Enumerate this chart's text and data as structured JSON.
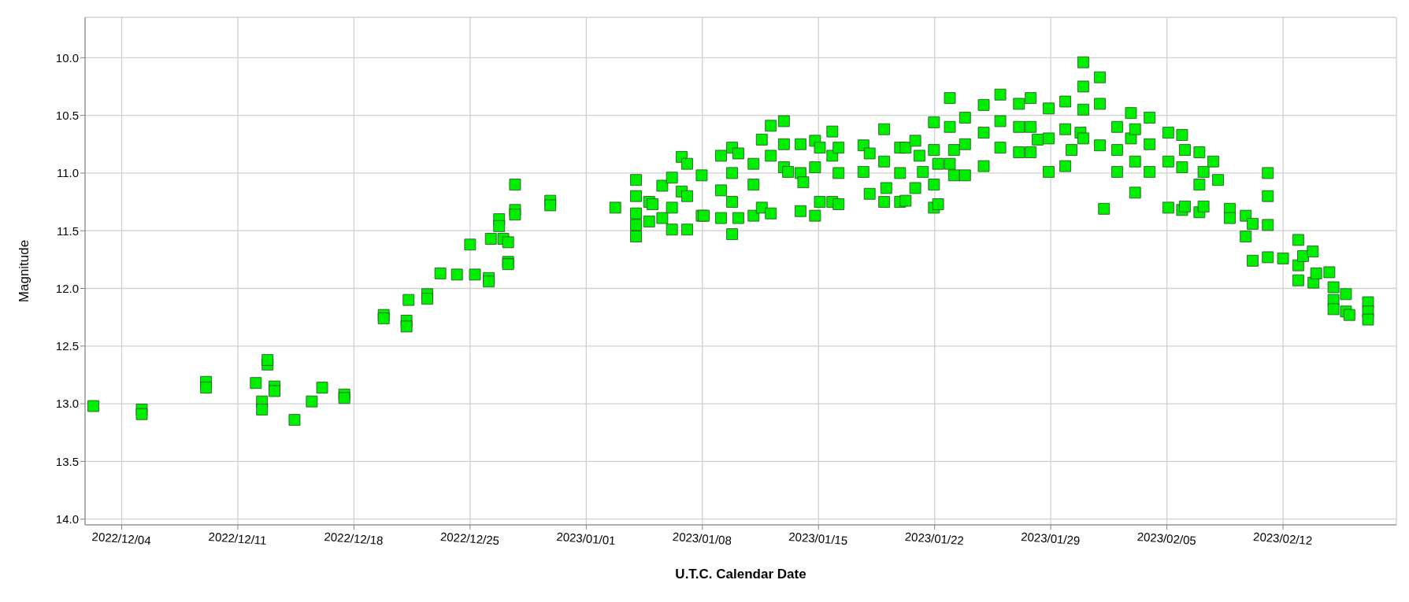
{
  "chart_data": {
    "type": "scatter",
    "xlabel": "U.T.C. Calendar Date",
    "ylabel": "Magnitude",
    "marker": "square",
    "grid": true,
    "xlim": [
      "2022-12-01T19:00",
      "2023-02-18T20:00"
    ],
    "xticks": [
      {
        "value": "2022-12-04",
        "label": "2022/12/04"
      },
      {
        "value": "2022-12-11",
        "label": "2022/12/11"
      },
      {
        "value": "2022-12-18",
        "label": "2022/12/18"
      },
      {
        "value": "2022-12-25",
        "label": "2022/12/25"
      },
      {
        "value": "2023-01-01",
        "label": "2023/01/01"
      },
      {
        "value": "2023-01-08",
        "label": "2023/01/08"
      },
      {
        "value": "2023-01-15",
        "label": "2023/01/15"
      },
      {
        "value": "2023-01-22",
        "label": "2023/01/22"
      },
      {
        "value": "2023-01-29",
        "label": "2023/01/29"
      },
      {
        "value": "2023-02-05",
        "label": "2023/02/05"
      },
      {
        "value": "2023-02-12",
        "label": "2023/02/12"
      }
    ],
    "ylim": [
      14.05,
      9.65
    ],
    "yticks": [
      {
        "value": 10,
        "label": "10.0"
      },
      {
        "value": 10.5,
        "label": "10.5"
      },
      {
        "value": 11,
        "label": "11.0"
      },
      {
        "value": 11.5,
        "label": "11.5"
      },
      {
        "value": 12,
        "label": "12.0"
      },
      {
        "value": 12.5,
        "label": "12.5"
      },
      {
        "value": 13,
        "label": "13.0"
      },
      {
        "value": 13.5,
        "label": "13.5"
      },
      {
        "value": 14,
        "label": "14.0"
      }
    ],
    "series": [
      {
        "color": "#00ee00",
        "x": [
          "2022-12-02T07:00",
          "2022-12-05T05:00",
          "2022-12-05T05:00",
          "2022-12-09T02:00",
          "2022-12-09T02:00",
          "2022-12-12T02:00",
          "2022-12-12T11:00",
          "2022-12-12T11:00",
          "2022-12-12T19:00",
          "2022-12-12T19:00",
          "2022-12-13T05:00",
          "2022-12-13T05:00",
          "2022-12-14T10:00",
          "2022-12-15T11:00",
          "2022-12-16T02:00",
          "2022-12-17T10:00",
          "2022-12-17T10:00",
          "2022-12-19T19:00",
          "2022-12-19T19:00",
          "2022-12-21T04:00",
          "2022-12-21T04:00",
          "2022-12-21T07:00",
          "2022-12-22T10:00",
          "2022-12-22T10:00",
          "2022-12-23T05:00",
          "2022-12-24T05:00",
          "2022-12-25T00:00",
          "2022-12-25T07:00",
          "2022-12-26T03:00",
          "2022-12-26T03:00",
          "2022-12-26T06:00",
          "2022-12-26T18:00",
          "2022-12-26T18:00",
          "2022-12-27T00:00",
          "2022-12-27T07:00",
          "2022-12-27T07:00",
          "2022-12-27T07:00",
          "2022-12-27T17:00",
          "2022-12-27T17:00",
          "2022-12-27T17:00",
          "2022-12-29T20:00",
          "2022-12-29T20:00",
          "2023-01-02T18:00",
          "2023-01-04T00:00",
          "2023-01-04T00:00",
          "2023-01-04T00:00",
          "2023-01-04T00:00",
          "2023-01-04T00:00",
          "2023-01-04T19:00",
          "2023-01-04T19:00",
          "2023-01-05T00:00",
          "2023-01-05T14:00",
          "2023-01-05T14:00",
          "2023-01-06T04:00",
          "2023-01-06T04:00",
          "2023-01-06T04:00",
          "2023-01-06T18:00",
          "2023-01-06T18:00",
          "2023-01-07T02:00",
          "2023-01-07T02:00",
          "2023-01-07T02:00",
          "2023-01-07T23:00",
          "2023-01-07T23:00",
          "2023-01-08T02:00",
          "2023-01-09T03:00",
          "2023-01-09T03:00",
          "2023-01-09T03:00",
          "2023-01-09T19:00",
          "2023-01-09T19:00",
          "2023-01-09T19:00",
          "2023-01-09T19:00",
          "2023-01-10T04:00",
          "2023-01-10T04:00",
          "2023-01-11T02:00",
          "2023-01-11T02:00",
          "2023-01-11T02:00",
          "2023-01-11T14:00",
          "2023-01-11T14:00",
          "2023-01-12T03:00",
          "2023-01-12T03:00",
          "2023-01-12T03:00",
          "2023-01-12T22:00",
          "2023-01-12T22:00",
          "2023-01-12T22:00",
          "2023-01-13T04:00",
          "2023-01-13T22:00",
          "2023-01-13T22:00",
          "2023-01-13T22:00",
          "2023-01-14T02:00",
          "2023-01-14T19:00",
          "2023-01-14T19:00",
          "2023-01-14T19:00",
          "2023-01-15T02:00",
          "2023-01-15T02:00",
          "2023-01-15T20:00",
          "2023-01-15T20:00",
          "2023-01-15T20:00",
          "2023-01-16T05:00",
          "2023-01-16T05:00",
          "2023-01-16T05:00",
          "2023-01-17T17:00",
          "2023-01-17T17:00",
          "2023-01-18T02:00",
          "2023-01-18T02:00",
          "2023-01-18T23:00",
          "2023-01-18T23:00",
          "2023-01-18T23:00",
          "2023-01-19T02:00",
          "2023-01-19T22:00",
          "2023-01-19T22:00",
          "2023-01-19T22:00",
          "2023-01-20T06:00",
          "2023-01-20T06:00",
          "2023-01-20T20:00",
          "2023-01-20T20:00",
          "2023-01-21T02:00",
          "2023-01-21T07:00",
          "2023-01-21T23:00",
          "2023-01-21T23:00",
          "2023-01-21T23:00",
          "2023-01-21T23:00",
          "2023-01-22T05:00",
          "2023-01-22T05:00",
          "2023-01-22T22:00",
          "2023-01-22T22:00",
          "2023-01-22T22:00",
          "2023-01-23T04:00",
          "2023-01-23T04:00",
          "2023-01-23T20:00",
          "2023-01-23T20:00",
          "2023-01-23T20:00",
          "2023-01-24T23:00",
          "2023-01-24T23:00",
          "2023-01-24T23:00",
          "2023-01-25T23:00",
          "2023-01-25T23:00",
          "2023-01-25T23:00",
          "2023-01-27T02:00",
          "2023-01-27T02:00",
          "2023-01-27T02:00",
          "2023-01-27T19:00",
          "2023-01-27T19:00",
          "2023-01-27T19:00",
          "2023-01-28T05:00",
          "2023-01-28T21:00",
          "2023-01-28T21:00",
          "2023-01-28T21:00",
          "2023-01-29T21:00",
          "2023-01-29T21:00",
          "2023-01-29T21:00",
          "2023-01-30T06:00",
          "2023-01-30T19:00",
          "2023-01-30T23:00",
          "2023-01-30T23:00",
          "2023-01-30T23:00",
          "2023-01-30T23:00",
          "2023-01-31T23:00",
          "2023-01-31T23:00",
          "2023-01-31T23:00",
          "2023-02-01T05:00",
          "2023-02-02T00:00",
          "2023-02-02T00:00",
          "2023-02-02T00:00",
          "2023-02-02T20:00",
          "2023-02-02T20:00",
          "2023-02-03T02:00",
          "2023-02-03T02:00",
          "2023-02-03T02:00",
          "2023-02-03T23:00",
          "2023-02-03T23:00",
          "2023-02-03T23:00",
          "2023-02-05T02:00",
          "2023-02-05T02:00",
          "2023-02-05T02:00",
          "2023-02-05T22:00",
          "2023-02-05T22:00",
          "2023-02-05T22:00",
          "2023-02-06T02:00",
          "2023-02-06T02:00",
          "2023-02-06T23:00",
          "2023-02-06T23:00",
          "2023-02-06T23:00",
          "2023-02-07T05:00",
          "2023-02-07T05:00",
          "2023-02-07T19:00",
          "2023-02-08T02:00",
          "2023-02-08T19:00",
          "2023-02-08T19:00",
          "2023-02-09T18:00",
          "2023-02-09T18:00",
          "2023-02-10T04:00",
          "2023-02-10T04:00",
          "2023-02-11T02:00",
          "2023-02-11T02:00",
          "2023-02-11T02:00",
          "2023-02-11T02:00",
          "2023-02-12T00:00",
          "2023-02-12T22:00",
          "2023-02-12T22:00",
          "2023-02-12T22:00",
          "2023-02-13T05:00",
          "2023-02-13T19:00",
          "2023-02-13T20:00",
          "2023-02-14T00:00",
          "2023-02-14T19:00",
          "2023-02-15T01:00",
          "2023-02-15T01:00",
          "2023-02-15T01:00",
          "2023-02-15T19:00",
          "2023-02-15T19:00",
          "2023-02-16T00:00",
          "2023-02-17T03:00",
          "2023-02-17T03:00",
          "2023-02-17T03:00"
        ],
        "values": [
          13.02,
          13.05,
          13.09,
          12.81,
          12.86,
          12.82,
          12.98,
          13.05,
          12.66,
          12.62,
          12.85,
          12.89,
          13.14,
          12.98,
          12.86,
          12.92,
          12.95,
          12.23,
          12.26,
          12.28,
          12.33,
          12.1,
          12.05,
          12.09,
          11.87,
          11.88,
          11.62,
          11.88,
          11.91,
          11.94,
          11.57,
          11.4,
          11.46,
          11.57,
          11.6,
          11.77,
          11.79,
          11.32,
          11.36,
          11.1,
          11.24,
          11.28,
          11.3,
          11.06,
          11.2,
          11.35,
          11.45,
          11.55,
          11.25,
          11.42,
          11.27,
          11.11,
          11.39,
          11.04,
          11.3,
          11.49,
          10.86,
          11.16,
          10.92,
          11.2,
          11.49,
          11.02,
          11.37,
          11.37,
          10.85,
          11.15,
          11.39,
          10.78,
          11.0,
          11.25,
          11.53,
          10.83,
          11.39,
          10.92,
          11.1,
          11.37,
          10.71,
          11.3,
          10.59,
          10.85,
          11.35,
          10.55,
          10.75,
          10.95,
          10.99,
          10.75,
          11.0,
          11.33,
          11.08,
          10.72,
          10.95,
          11.37,
          10.78,
          11.25,
          10.64,
          10.85,
          11.25,
          10.78,
          11.0,
          11.27,
          10.76,
          10.99,
          10.83,
          11.18,
          10.62,
          10.9,
          11.25,
          11.13,
          10.78,
          11.0,
          11.25,
          10.78,
          11.24,
          10.72,
          11.13,
          10.85,
          10.99,
          10.56,
          10.8,
          11.1,
          11.3,
          10.92,
          11.27,
          10.35,
          10.6,
          10.92,
          10.8,
          11.02,
          10.52,
          10.75,
          11.02,
          10.41,
          10.65,
          10.94,
          10.32,
          10.55,
          10.78,
          10.4,
          10.6,
          10.82,
          10.35,
          10.6,
          10.82,
          10.71,
          10.44,
          10.7,
          10.99,
          10.38,
          10.62,
          10.94,
          10.8,
          10.65,
          10.04,
          10.25,
          10.45,
          10.7,
          10.17,
          10.4,
          10.76,
          11.31,
          10.6,
          10.8,
          10.99,
          10.48,
          10.7,
          10.62,
          10.9,
          11.17,
          10.52,
          10.75,
          10.99,
          10.65,
          10.9,
          11.3,
          10.67,
          10.95,
          11.32,
          10.8,
          11.29,
          10.82,
          11.1,
          11.34,
          10.99,
          11.29,
          10.9,
          11.06,
          11.31,
          11.39,
          11.37,
          11.55,
          11.44,
          11.76,
          11.0,
          11.2,
          11.45,
          11.73,
          11.74,
          11.58,
          11.8,
          11.93,
          11.72,
          11.68,
          11.95,
          11.87,
          11.86,
          11.99,
          12.1,
          12.18,
          12.05,
          12.2,
          12.23,
          12.12,
          12.2,
          12.27
        ]
      }
    ]
  }
}
